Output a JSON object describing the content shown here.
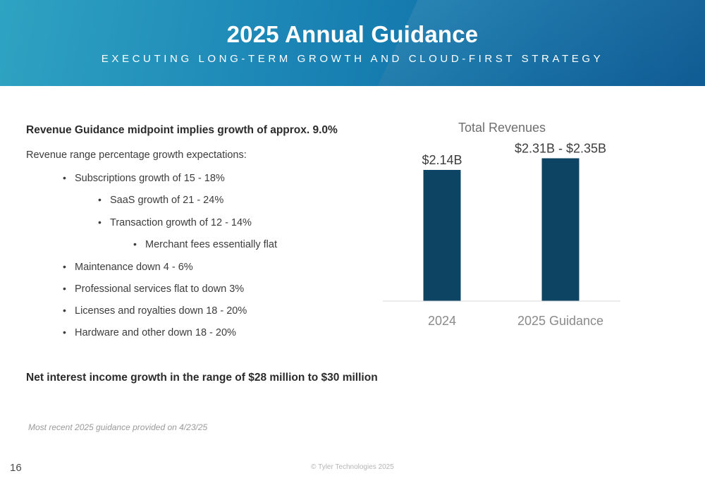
{
  "header": {
    "title": "2025 Annual Guidance",
    "subtitle": "EXECUTING LONG-TERM GROWTH AND CLOUD-FIRST STRATEGY"
  },
  "content": {
    "headline": "Revenue Guidance midpoint implies growth of approx. 9.0%",
    "intro": "Revenue range percentage growth expectations:",
    "bullets": [
      {
        "text": "Subscriptions growth of 15 - 18%"
      },
      {
        "text": "SaaS growth of 21 - 24%"
      },
      {
        "text": "Transaction growth of 12 - 14%"
      },
      {
        "text": "Merchant fees essentially flat"
      },
      {
        "text": "Maintenance down 4 - 6%"
      },
      {
        "text": "Professional services flat to down 3%"
      },
      {
        "text": "Licenses and royalties down 18 - 20%"
      },
      {
        "text": "Hardware and other down 18 - 20%"
      }
    ],
    "net_interest": "Net interest income growth in the range of $28 million to $30 million",
    "note": "Most recent 2025 guidance provided on 4/23/25"
  },
  "footer": {
    "page_number": "16",
    "copyright": "© Tyler Technologies 2025"
  },
  "chart_data": {
    "type": "bar",
    "title": "Total Revenues",
    "categories": [
      "2024",
      "2025 Guidance"
    ],
    "values": [
      2.14,
      2.33
    ],
    "data_labels": [
      "$2.14B",
      "$2.31B - $2.35B"
    ],
    "bar_color": "#0d4464",
    "ylim": [
      0,
      2.6
    ],
    "grid": false,
    "legend": "none"
  },
  "colors": {
    "header_start": "#2fa3c2",
    "header_end": "#0b5f99",
    "bar": "#0d4464"
  }
}
